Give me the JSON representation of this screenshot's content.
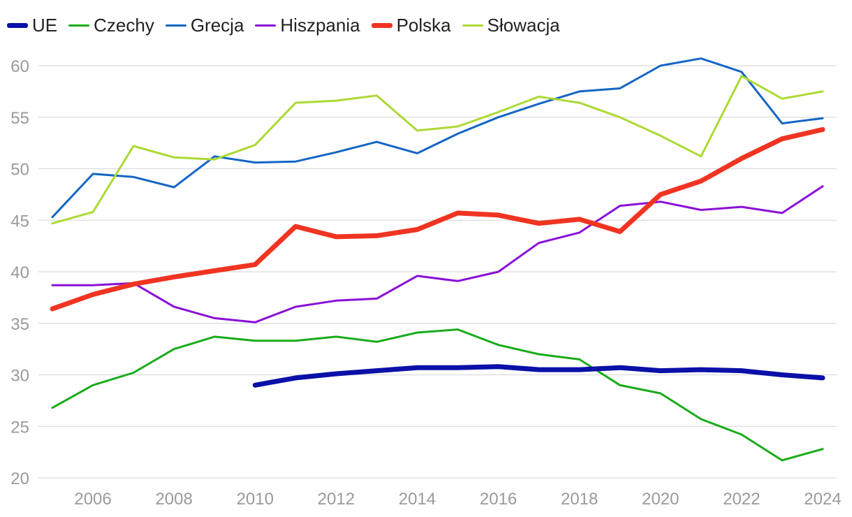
{
  "chart_data": {
    "type": "line",
    "title": "",
    "xlabel": "",
    "ylabel": "",
    "x": [
      2005,
      2006,
      2007,
      2008,
      2009,
      2010,
      2011,
      2012,
      2013,
      2014,
      2015,
      2016,
      2017,
      2018,
      2019,
      2020,
      2021,
      2022,
      2023,
      2024
    ],
    "xticks": [
      2006,
      2008,
      2010,
      2012,
      2014,
      2016,
      2018,
      2020,
      2022,
      2024
    ],
    "xlim": [
      2005,
      2024
    ],
    "yticks": [
      20,
      25,
      30,
      35,
      40,
      45,
      50,
      55,
      60
    ],
    "ylim": [
      20,
      60
    ],
    "grid": "horizontal",
    "legend_position": "top-left",
    "series": [
      {
        "name": "UE",
        "color": "#0a10a8",
        "emphasis": "bold",
        "values": [
          null,
          null,
          null,
          null,
          null,
          29.0,
          29.7,
          30.1,
          30.4,
          30.7,
          30.7,
          30.8,
          30.5,
          30.5,
          30.7,
          30.4,
          30.5,
          30.4,
          30.0,
          29.7
        ]
      },
      {
        "name": "Czechy",
        "color": "#1aab1a",
        "emphasis": "normal",
        "values": [
          26.8,
          29.0,
          30.2,
          32.5,
          33.7,
          33.3,
          33.3,
          33.7,
          33.2,
          34.1,
          34.4,
          32.9,
          32.0,
          31.5,
          29.0,
          28.2,
          25.7,
          24.2,
          21.7,
          22.8
        ]
      },
      {
        "name": "Grecja",
        "color": "#1466c4",
        "emphasis": "normal",
        "values": [
          45.3,
          49.5,
          49.2,
          48.2,
          51.2,
          50.6,
          50.7,
          51.6,
          52.6,
          51.5,
          53.4,
          55.0,
          56.3,
          57.5,
          57.8,
          60.0,
          60.7,
          59.4,
          54.4,
          54.9
        ]
      },
      {
        "name": "Hiszpania",
        "color": "#8a10d6",
        "emphasis": "normal",
        "values": [
          38.7,
          38.7,
          38.9,
          36.6,
          35.5,
          35.1,
          36.6,
          37.2,
          37.4,
          39.6,
          39.1,
          40.0,
          42.8,
          43.8,
          46.4,
          46.8,
          46.0,
          46.3,
          45.7,
          48.3
        ]
      },
      {
        "name": "Polska",
        "color": "#f03422",
        "emphasis": "bold",
        "values": [
          36.4,
          37.8,
          38.8,
          39.5,
          40.1,
          40.7,
          44.4,
          43.4,
          43.5,
          44.1,
          45.7,
          45.5,
          44.7,
          45.1,
          43.9,
          47.5,
          48.8,
          51.0,
          52.9,
          53.8
        ]
      },
      {
        "name": "Słowacja",
        "color": "#acd934",
        "emphasis": "normal",
        "values": [
          44.7,
          45.8,
          52.2,
          51.1,
          50.9,
          52.3,
          56.4,
          56.6,
          57.1,
          53.7,
          54.1,
          55.5,
          57.0,
          56.4,
          55.0,
          53.2,
          51.2,
          59.0,
          56.8,
          57.5
        ]
      }
    ]
  }
}
